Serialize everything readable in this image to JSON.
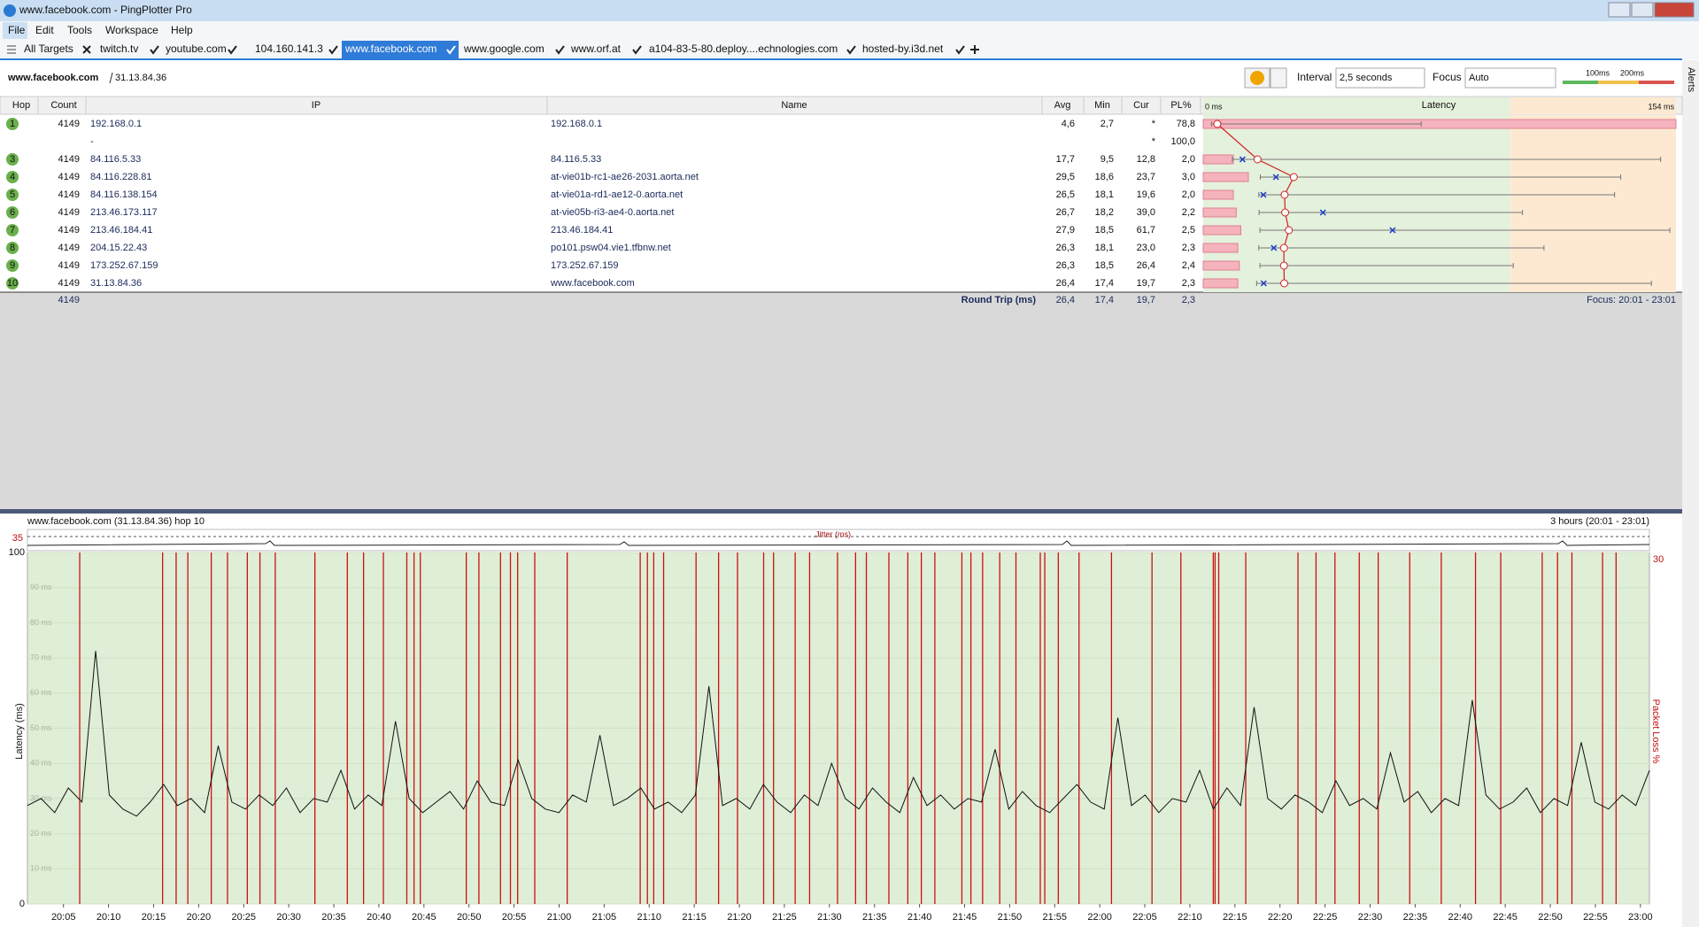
{
  "window": {
    "title": "www.facebook.com - PingPlotter Pro"
  },
  "menu": [
    "File",
    "Edit",
    "Tools",
    "Workspace",
    "Help"
  ],
  "tabs": [
    "All Targets",
    "twitch.tv",
    "youtube.com",
    "104.160.141.3",
    "www.facebook.com",
    "www.google.com",
    "www.orf.at",
    "a104-83-5-80.deploy....echnologies.com",
    "hosted-by.i3d.net"
  ],
  "target": {
    "name": "www.facebook.com",
    "ip": "31.13.84.36"
  },
  "controls": {
    "interval_label": "Interval",
    "interval": "2,5 seconds",
    "focus_label": "Focus",
    "focus": "Auto",
    "thresholds": [
      {
        "value": 100,
        "label": "100ms"
      },
      {
        "value": 200,
        "label": "200ms"
      }
    ],
    "alerts": "Alerts"
  },
  "table": {
    "headers": {
      "hop": "Hop",
      "count": "Count",
      "ip": "IP",
      "name": "Name",
      "avg": "Avg",
      "min": "Min",
      "cur": "Cur",
      "pl": "PL%",
      "latency": "Latency"
    },
    "latency_range": [
      {
        "value": 0,
        "label": "0 ms"
      },
      {
        "value": 154,
        "label": "154 ms"
      }
    ],
    "rows": [
      {
        "hop": "1",
        "count": "4149",
        "ip": "192.168.0.1",
        "name": "192.168.0.1",
        "avg": "4,6",
        "min": "2,7",
        "cur": "*",
        "pl": "78,8",
        "max": 71
      },
      {
        "ip": "-",
        "cur": "*",
        "pl": "100,0"
      },
      {
        "hop": "3",
        "count": "4149",
        "ip": "84.116.5.33",
        "name": "84.116.5.33",
        "avg": "17,7",
        "min": "9,5",
        "cur": "12,8",
        "pl": "2,0",
        "max": 149
      },
      {
        "hop": "4",
        "count": "4149",
        "ip": "84.116.228.81",
        "name": "at-vie01b-rc1-ae26-2031.aorta.net",
        "avg": "29,5",
        "min": "18,6",
        "cur": "23,7",
        "pl": "3,0",
        "max": 136
      },
      {
        "hop": "5",
        "count": "4149",
        "ip": "84.116.138.154",
        "name": "at-vie01a-rd1-ae12-0.aorta.net",
        "avg": "26,5",
        "min": "18,1",
        "cur": "19,6",
        "pl": "2,0",
        "max": 134
      },
      {
        "hop": "6",
        "count": "4149",
        "ip": "213.46.173.117",
        "name": "at-vie05b-ri3-ae4-0.aorta.net",
        "avg": "26,7",
        "min": "18,2",
        "cur": "39,0",
        "pl": "2,2",
        "max": 104
      },
      {
        "hop": "7",
        "count": "4149",
        "ip": "213.46.184.41",
        "name": "213.46.184.41",
        "avg": "27,9",
        "min": "18,5",
        "cur": "61,7",
        "pl": "2,5",
        "max": 152
      },
      {
        "hop": "8",
        "count": "4149",
        "ip": "204.15.22.43",
        "name": "po101.psw04.vie1.tfbnw.net",
        "avg": "26,3",
        "min": "18,1",
        "cur": "23,0",
        "pl": "2,3",
        "max": 111
      },
      {
        "hop": "9",
        "count": "4149",
        "ip": "173.252.67.159",
        "name": "173.252.67.159",
        "avg": "26,3",
        "min": "18,5",
        "cur": "26,4",
        "pl": "2,4",
        "max": 101
      },
      {
        "hop": "10",
        "count": "4149",
        "ip": "31.13.84.36",
        "name": "www.facebook.com",
        "avg": "26,4",
        "min": "17,4",
        "cur": "19,7",
        "pl": "2,3",
        "max": 146
      }
    ],
    "round_trip": {
      "count": "4149",
      "label": "Round Trip (ms)",
      "avg": "26,4",
      "min": "17,4",
      "cur": "19,7",
      "pl": "2,3"
    },
    "focus": "Focus: 20:01 - 23:01"
  },
  "latency_graph": {
    "type": "line",
    "title": "www.facebook.com (31.13.84.36) hop 10",
    "range_label": "3 hours (20:01 - 23:01)",
    "ylabel": "Latency (ms)",
    "y2label": "Packet Loss %",
    "jitter_label": "Jitter (ms)",
    "jitter_ticks": [
      35
    ],
    "xlim": [
      0,
      180
    ],
    "xticks": [
      {
        "value": 4,
        "label": "20:05"
      },
      {
        "value": 9,
        "label": "20:10"
      },
      {
        "value": 14,
        "label": "20:15"
      },
      {
        "value": 19,
        "label": "20:20"
      },
      {
        "value": 24,
        "label": "20:25"
      },
      {
        "value": 29,
        "label": "20:30"
      },
      {
        "value": 34,
        "label": "20:35"
      },
      {
        "value": 39,
        "label": "20:40"
      },
      {
        "value": 44,
        "label": "20:45"
      },
      {
        "value": 49,
        "label": "20:50"
      },
      {
        "value": 54,
        "label": "20:55"
      },
      {
        "value": 59,
        "label": "21:00"
      },
      {
        "value": 64,
        "label": "21:05"
      },
      {
        "value": 69,
        "label": "21:10"
      },
      {
        "value": 74,
        "label": "21:15"
      },
      {
        "value": 79,
        "label": "21:20"
      },
      {
        "value": 84,
        "label": "21:25"
      },
      {
        "value": 89,
        "label": "21:30"
      },
      {
        "value": 94,
        "label": "21:35"
      },
      {
        "value": 99,
        "label": "21:40"
      },
      {
        "value": 104,
        "label": "21:45"
      },
      {
        "value": 109,
        "label": "21:50"
      },
      {
        "value": 114,
        "label": "21:55"
      },
      {
        "value": 119,
        "label": "22:00"
      },
      {
        "value": 124,
        "label": "22:05"
      },
      {
        "value": 129,
        "label": "22:10"
      },
      {
        "value": 134,
        "label": "22:15"
      },
      {
        "value": 139,
        "label": "22:20"
      },
      {
        "value": 144,
        "label": "22:25"
      },
      {
        "value": 149,
        "label": "22:30"
      },
      {
        "value": 154,
        "label": "22:35"
      },
      {
        "value": 159,
        "label": "22:40"
      },
      {
        "value": 164,
        "label": "22:45"
      },
      {
        "value": 169,
        "label": "22:50"
      },
      {
        "value": 174,
        "label": "22:55"
      },
      {
        "value": 179,
        "label": "23:00"
      }
    ],
    "ylim": [
      0,
      100
    ],
    "yticks": [
      0,
      {
        "value": 10,
        "label": "10 ms"
      },
      {
        "value": 20,
        "label": "20 ms"
      },
      {
        "value": 30,
        "label": "30 ms"
      },
      {
        "value": 40,
        "label": "40 ms"
      },
      {
        "value": 50,
        "label": "50 ms"
      },
      {
        "value": 60,
        "label": "60 ms"
      },
      {
        "value": 70,
        "label": "70 ms"
      },
      {
        "value": 80,
        "label": "80 ms"
      },
      {
        "value": 90,
        "label": "90 ms"
      },
      100
    ],
    "y2lim": [
      0,
      30
    ],
    "y2ticks": [
      30
    ],
    "color": "#111111",
    "loss_color": "#cc1111",
    "values": [
      28,
      30,
      26,
      33,
      29,
      72,
      31,
      27,
      25,
      29,
      34,
      28,
      30,
      26,
      45,
      29,
      27,
      31,
      28,
      33,
      26,
      30,
      29,
      38,
      27,
      31,
      28,
      52,
      30,
      26,
      29,
      32,
      27,
      35,
      29,
      28,
      41,
      30,
      27,
      26,
      31,
      29,
      48,
      28,
      30,
      33,
      27,
      29,
      26,
      31,
      62,
      28,
      30,
      27,
      34,
      29,
      26,
      31,
      28,
      40,
      30,
      27,
      33,
      29,
      26,
      36,
      28,
      31,
      27,
      30,
      29,
      44,
      27,
      32,
      28,
      26,
      30,
      34,
      29,
      27,
      53,
      28,
      31,
      26,
      30,
      29,
      38,
      27,
      33,
      28,
      56,
      30,
      27,
      31,
      29,
      26,
      35,
      28,
      30,
      27,
      43,
      29,
      32,
      26,
      30,
      28,
      58,
      31,
      27,
      29,
      33,
      26,
      30,
      28,
      46,
      29,
      27,
      31,
      28,
      38
    ],
    "loss_x": [
      5.8,
      15.0,
      16.5,
      17.8,
      20.4,
      22.2,
      24.4,
      25.8,
      27.5,
      31.9,
      35.5,
      37.3,
      39.5,
      42.1,
      42.9,
      43.6,
      48.7,
      50.1,
      52.5,
      53.6,
      54.4,
      56.3,
      59.9,
      68.0,
      68.8,
      69.5,
      70.6,
      74.2,
      76.7,
      78.8,
      81.7,
      82.8,
      85.2,
      86.8,
      89.9,
      91.9,
      93.1,
      95.6,
      97.7,
      99.2,
      100.7,
      103.7,
      104.7,
      106.0,
      107.9,
      109.7,
      112.4,
      112.9,
      114.4,
      116.7,
      120.3,
      124.8,
      128.0,
      131.6,
      131.8,
      132.2,
      135.2,
      141.0,
      143.0,
      145.1,
      147.8,
      149.9,
      153.4,
      156.9,
      160.7,
      163.5,
      168.1,
      169.8,
      171.4,
      174.8,
      176.3
    ]
  }
}
